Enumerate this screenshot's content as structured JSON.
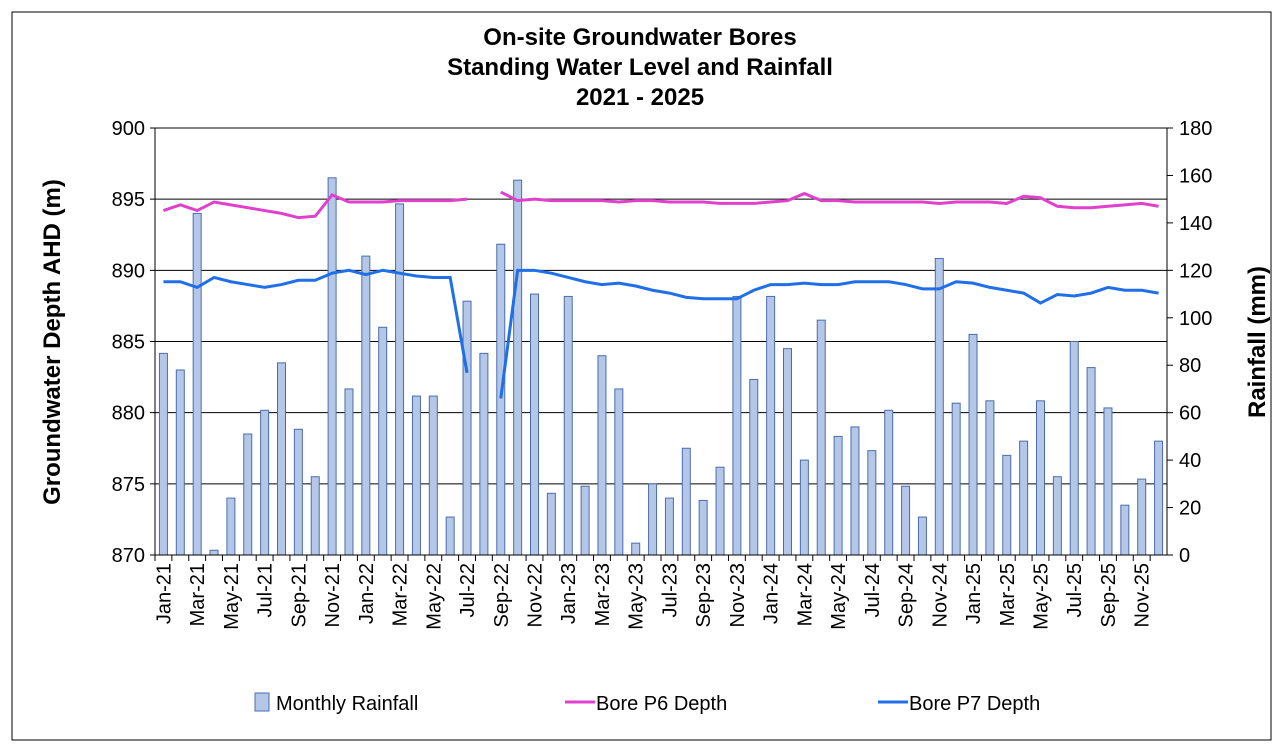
{
  "chart_data": {
    "type": "bar",
    "title": [
      "On-site Groundwater Bores",
      "Standing Water Level and Rainfall",
      "2021 - 2025"
    ],
    "ylabel": "Groundwater Depth AHD (m)",
    "y2label": "Rainfall (mm)",
    "categories": [
      "Jan-21",
      null,
      "Mar-21",
      null,
      "May-21",
      null,
      "Jul-21",
      null,
      "Sep-21",
      null,
      "Nov-21",
      null,
      "Jan-22",
      null,
      "Mar-22",
      null,
      "May-22",
      null,
      "Jul-22",
      null,
      "Sep-22",
      null,
      "Nov-22",
      null,
      "Jan-23",
      null,
      "Mar-23",
      null,
      "May-23",
      null,
      "Jul-23",
      null,
      "Sep-23",
      null,
      "Nov-23",
      null,
      "Jan-24",
      null,
      "Mar-24",
      null,
      "May-24",
      null,
      "Jul-24",
      null,
      "Sep-24",
      null,
      "Nov-24",
      null,
      "Jan-25",
      null,
      "Mar-25",
      null,
      "May-25",
      null,
      "Jul-25",
      null,
      "Sep-25",
      null,
      "Nov-25",
      null
    ],
    "series": [
      {
        "name": "Monthly Rainfall",
        "type": "bar",
        "axis": "y2",
        "color": "#b4c7e7",
        "edge": "#4a6db0",
        "values": [
          85,
          78,
          144,
          2,
          24,
          51,
          61,
          81,
          53,
          33,
          159,
          70,
          126,
          96,
          148,
          67,
          67,
          16,
          107,
          85,
          131,
          158,
          110,
          26,
          109,
          29,
          84,
          70,
          5,
          30,
          24,
          45,
          23,
          37,
          109,
          74,
          109,
          87,
          40,
          99,
          50,
          54,
          44,
          61,
          29,
          16,
          125,
          64,
          93,
          65,
          42,
          48,
          65,
          33,
          90,
          79,
          62,
          21,
          32,
          48
        ]
      },
      {
        "name": "Bore P6 Depth",
        "type": "line",
        "color": "#e040cc",
        "values": [
          894.2,
          894.6,
          894.2,
          894.8,
          894.6,
          894.4,
          894.2,
          894.0,
          893.7,
          893.8,
          895.3,
          894.8,
          894.8,
          894.8,
          894.9,
          894.9,
          894.9,
          894.9,
          895.0,
          null,
          895.5,
          894.9,
          895.0,
          894.9,
          894.9,
          894.9,
          894.9,
          894.8,
          894.9,
          894.9,
          894.8,
          894.8,
          894.8,
          894.7,
          894.7,
          894.7,
          894.8,
          894.9,
          895.4,
          894.9,
          894.9,
          894.8,
          894.8,
          894.8,
          894.8,
          894.8,
          894.7,
          894.8,
          894.8,
          894.8,
          894.7,
          895.2,
          895.1,
          894.5,
          894.4,
          894.4,
          894.5,
          894.6,
          894.7,
          894.5
        ]
      },
      {
        "name": "Bore P7 Depth",
        "type": "line",
        "color": "#1f6fe8",
        "values": [
          889.2,
          889.2,
          888.8,
          889.5,
          889.2,
          889.0,
          888.8,
          889.0,
          889.3,
          889.3,
          889.8,
          890.0,
          889.7,
          890.0,
          889.8,
          889.6,
          889.5,
          889.5,
          882.8,
          null,
          881.0,
          890.0,
          890.0,
          889.8,
          889.5,
          889.2,
          889.0,
          889.1,
          888.9,
          888.6,
          888.4,
          888.1,
          888.0,
          888.0,
          888.0,
          888.6,
          889.0,
          889.0,
          889.1,
          889.0,
          889.0,
          889.2,
          889.2,
          889.2,
          889.0,
          888.7,
          888.7,
          889.2,
          889.1,
          888.8,
          888.6,
          888.4,
          887.7,
          888.3,
          888.2,
          888.4,
          888.8,
          888.6,
          888.6,
          888.4
        ]
      }
    ],
    "ylim": [
      870,
      900
    ],
    "yticks": [
      870,
      875,
      880,
      885,
      890,
      895,
      900
    ],
    "y2lim": [
      0,
      180
    ],
    "y2ticks": [
      0,
      20,
      40,
      60,
      80,
      100,
      120,
      140,
      160,
      180
    ],
    "grid": true,
    "legend": "bottom"
  }
}
